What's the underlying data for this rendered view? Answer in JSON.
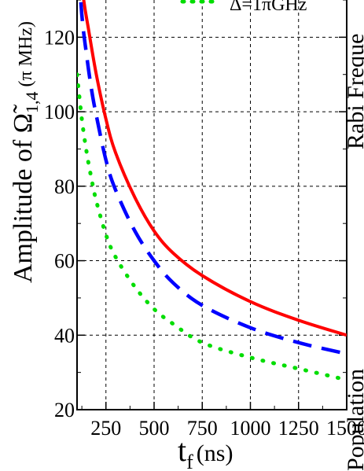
{
  "chart_data": {
    "type": "line",
    "title": "",
    "xlabel": {
      "main": "t",
      "sub": "f",
      "unit": "(ns)"
    },
    "ylabel": {
      "main": "Amplitude of ",
      "symbol": "Ω̃",
      "sub": "1,4",
      "unit": " (π MHz)"
    },
    "xlim": [
      100,
      1500
    ],
    "ylim": [
      20,
      130
    ],
    "xticks": [
      250,
      500,
      750,
      1000,
      1250,
      1500
    ],
    "xtick_labels": [
      "250",
      "500",
      "750",
      "1000",
      "1250",
      "1500"
    ],
    "yticks": [
      20,
      40,
      60,
      80,
      100,
      120
    ],
    "ytick_labels": [
      "20",
      "40",
      "60",
      "80",
      "100",
      "120"
    ],
    "grid": true,
    "legend_fragment": "Δ=1πGHz",
    "side_labels": [
      "Rabi Freque",
      "Population"
    ],
    "series": [
      {
        "style": "solid",
        "color": "#ff0000",
        "x": [
          100,
          130,
          160,
          200,
          250,
          300,
          400,
          500,
          600,
          750,
          1000,
          1250,
          1500
        ],
        "y": [
          150,
          132,
          122,
          110,
          98,
          89,
          77,
          68,
          62,
          56,
          49,
          44,
          40
        ]
      },
      {
        "style": "dashed",
        "color": "#0000ff",
        "x": [
          100,
          125,
          150,
          175,
          200,
          250,
          300,
          400,
          500,
          600,
          750,
          1000,
          1250,
          1500
        ],
        "y": [
          145,
          126,
          115,
          106,
          99,
          87,
          79,
          68,
          60,
          54,
          48,
          42,
          38,
          35
        ]
      },
      {
        "style": "dotted",
        "color": "#00dd00",
        "x": [
          100,
          125,
          150,
          175,
          200,
          250,
          300,
          400,
          500,
          600,
          750,
          1000,
          1250,
          1500
        ],
        "y": [
          110,
          98,
          89,
          82,
          76,
          67,
          61,
          53,
          47,
          43,
          38,
          34,
          31,
          28
        ]
      }
    ]
  }
}
